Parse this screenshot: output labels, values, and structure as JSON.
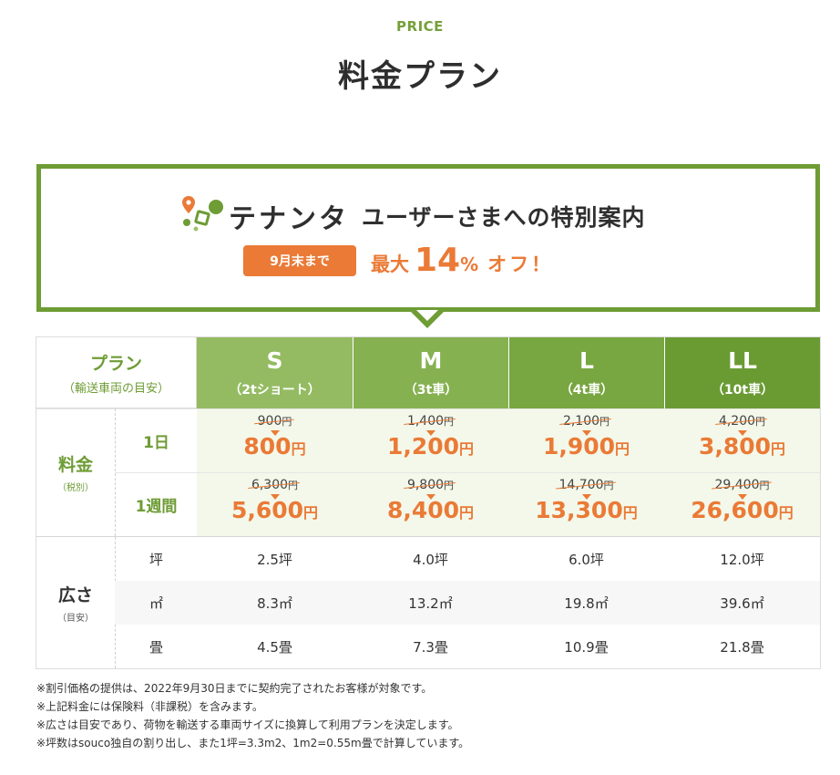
{
  "header": {
    "eyebrow": "PRICE",
    "title": "料金プラン"
  },
  "banner": {
    "brand": "テナンタ",
    "headline": "ユーザーさまへの特別案内",
    "deadline_badge": "9月末まで",
    "discount_prefix": "最大",
    "discount_value": "14",
    "discount_unit": "%",
    "discount_suffix": "オフ！",
    "colors": {
      "border": "#6e9c35",
      "accent": "#ea7a36"
    }
  },
  "table": {
    "plan_label": "プラン",
    "plan_sublabel": "（輸送車両の目安）",
    "plans": [
      {
        "size": "S",
        "truck": "（2tショート）",
        "color": "#94bb62"
      },
      {
        "size": "M",
        "truck": "（3t車）",
        "color": "#86b151"
      },
      {
        "size": "L",
        "truck": "（4t車）",
        "color": "#78a640"
      },
      {
        "size": "LL",
        "truck": "（10t車）",
        "color": "#6a9b33"
      }
    ],
    "price_group": {
      "label": "料金",
      "sublabel": "（税別）"
    },
    "yen": "円",
    "price_rows": [
      {
        "period": "1日",
        "cells": [
          {
            "old": "900",
            "new": "800"
          },
          {
            "old": "1,400",
            "new": "1,200"
          },
          {
            "old": "2,100",
            "new": "1,900"
          },
          {
            "old": "4,200",
            "new": "3,800"
          }
        ]
      },
      {
        "period": "1週間",
        "cells": [
          {
            "old": "6,300",
            "new": "5,600"
          },
          {
            "old": "9,800",
            "new": "8,400"
          },
          {
            "old": "14,700",
            "new": "13,300"
          },
          {
            "old": "29,400",
            "new": "26,600"
          }
        ]
      }
    ],
    "space_group": {
      "label": "広さ",
      "sublabel": "（目安）"
    },
    "space_rows": [
      {
        "unit": "坪",
        "values": [
          "2.5坪",
          "4.0坪",
          "6.0坪",
          "12.0坪"
        ]
      },
      {
        "unit": "㎡",
        "values": [
          "8.3㎡",
          "13.2㎡",
          "19.8㎡",
          "39.6㎡"
        ]
      },
      {
        "unit": "畳",
        "values": [
          "4.5畳",
          "7.3畳",
          "10.9畳",
          "21.8畳"
        ]
      }
    ]
  },
  "notes": [
    "※割引価格の提供は、2022年9月30日までに契約完了されたお客様が対象です。",
    "※上記料金には保険料（非課税）を含みます。",
    "※広さは目安であり、荷物を輸送する車両サイズに換算して利用プランを決定します。",
    "※坪数はsouco独自の割り出し、また1坪=3.3m2、1m2=0.55m畳で計算しています。"
  ]
}
